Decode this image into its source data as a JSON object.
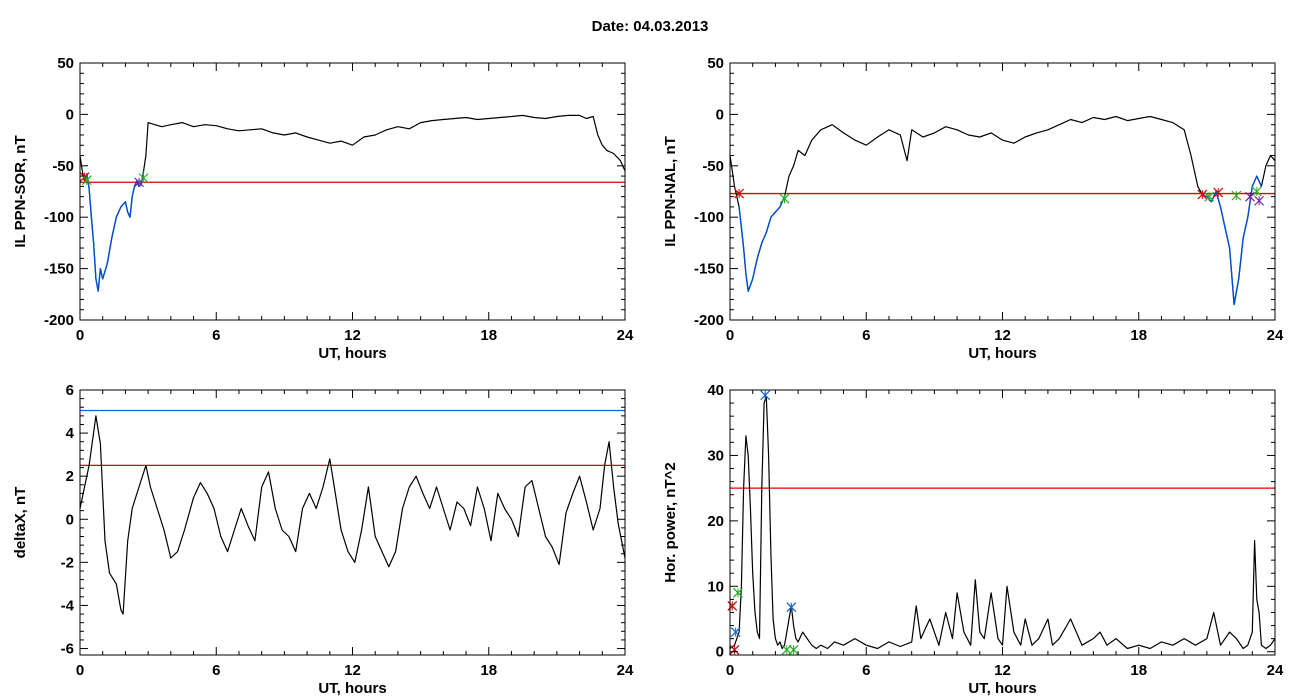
{
  "figure": {
    "title": "Date:  04.03.2013"
  },
  "chart_data": [
    {
      "type": "line",
      "id": "il-sor",
      "xlabel": "UT, hours",
      "ylabel": "IL PPN-SOR, nT",
      "xlim": [
        0,
        24
      ],
      "ylim": [
        -200,
        50
      ],
      "xticks": [
        0,
        6,
        12,
        18,
        24
      ],
      "yticks": [
        -200,
        -150,
        -100,
        -50,
        0,
        50
      ],
      "series": [
        {
          "color": "#000000",
          "x": [
            0,
            0.1,
            0.2,
            0.3,
            0.4,
            0.5,
            0.6,
            0.7,
            0.8,
            0.9,
            1,
            1.2,
            1.4,
            1.6,
            1.8,
            2,
            2.1,
            2.2,
            2.3,
            2.4,
            2.5,
            2.6,
            2.7,
            2.8,
            2.9,
            3,
            3.3,
            3.6,
            4,
            4.5,
            5,
            5.5,
            6,
            6.5,
            7,
            7.5,
            8,
            8.5,
            9,
            9.5,
            10,
            10.5,
            11,
            11.5,
            12,
            12.5,
            13,
            13.5,
            14,
            14.5,
            15,
            15.5,
            16,
            16.5,
            17,
            17.5,
            18,
            18.5,
            19,
            19.5,
            20,
            20.5,
            21,
            21.5,
            22,
            22.3,
            22.6,
            22.8,
            23,
            23.2,
            23.5,
            23.8,
            24
          ],
          "y": [
            -40,
            -55,
            -65,
            -58,
            -72,
            -100,
            -125,
            -160,
            -172,
            -150,
            -160,
            -145,
            -120,
            -100,
            -90,
            -85,
            -95,
            -100,
            -80,
            -70,
            -65,
            -70,
            -68,
            -55,
            -40,
            -8,
            -10,
            -12,
            -10,
            -8,
            -12,
            -10,
            -11,
            -14,
            -16,
            -15,
            -14,
            -18,
            -20,
            -18,
            -22,
            -25,
            -28,
            -26,
            -30,
            -22,
            -20,
            -15,
            -12,
            -14,
            -8,
            -6,
            -5,
            -4,
            -3,
            -5,
            -4,
            -3,
            -2,
            -1,
            -3,
            -4,
            -2,
            -1,
            -1,
            -4,
            -2,
            -20,
            -30,
            -35,
            -38,
            -45,
            -55
          ]
        }
      ],
      "threshold_lines": [
        {
          "y": -66,
          "color": "#e00000"
        }
      ],
      "markers": [
        {
          "x": 0.2,
          "y": -61,
          "color": "#d00000"
        },
        {
          "x": 0.3,
          "y": -64,
          "color": "#20b020"
        },
        {
          "x": 2.6,
          "y": -66,
          "color": "#7020a0"
        },
        {
          "x": 2.8,
          "y": -62,
          "color": "#20b020"
        }
      ],
      "highlight_range": [
        0.3,
        2.8
      ],
      "highlight_color": "#0050d0"
    },
    {
      "type": "line",
      "id": "il-nal",
      "xlabel": "UT, hours",
      "ylabel": "IL PPN-NAL, nT",
      "xlim": [
        0,
        24
      ],
      "ylim": [
        -200,
        50
      ],
      "xticks": [
        0,
        6,
        12,
        18,
        24
      ],
      "yticks": [
        -200,
        -150,
        -100,
        -50,
        0,
        50
      ],
      "series": [
        {
          "color": "#000000",
          "x": [
            0,
            0.1,
            0.2,
            0.3,
            0.4,
            0.5,
            0.6,
            0.7,
            0.8,
            1,
            1.2,
            1.4,
            1.6,
            1.8,
            2,
            2.2,
            2.4,
            2.6,
            2.8,
            3,
            3.3,
            3.6,
            4,
            4.5,
            5,
            5.5,
            6,
            6.5,
            7,
            7.5,
            7.8,
            8,
            8.5,
            9,
            9.5,
            10,
            10.5,
            11,
            11.5,
            12,
            12.5,
            13,
            13.5,
            14,
            14.5,
            15,
            15.5,
            16,
            16.5,
            17,
            17.5,
            18,
            18.5,
            19,
            19.5,
            20,
            20.3,
            20.6,
            20.8,
            21,
            21.2,
            21.4,
            21.6,
            21.8,
            22,
            22.2,
            22.4,
            22.6,
            22.8,
            23,
            23.2,
            23.4,
            23.6,
            23.8,
            24
          ],
          "y": [
            -40,
            -55,
            -70,
            -80,
            -90,
            -110,
            -130,
            -155,
            -172,
            -160,
            -140,
            -125,
            -115,
            -100,
            -95,
            -90,
            -80,
            -60,
            -50,
            -35,
            -40,
            -25,
            -15,
            -10,
            -18,
            -25,
            -30,
            -22,
            -15,
            -20,
            -45,
            -15,
            -22,
            -18,
            -12,
            -15,
            -20,
            -22,
            -18,
            -25,
            -28,
            -22,
            -18,
            -15,
            -10,
            -5,
            -8,
            -3,
            -5,
            -2,
            -6,
            -4,
            -2,
            -5,
            -8,
            -15,
            -40,
            -70,
            -78,
            -80,
            -85,
            -75,
            -90,
            -110,
            -130,
            -185,
            -160,
            -120,
            -100,
            -70,
            -60,
            -70,
            -50,
            -40,
            -45
          ]
        }
      ],
      "threshold_lines": [
        {
          "y": -77,
          "color": "#e00000"
        }
      ],
      "markers": [
        {
          "x": 0.4,
          "y": -77,
          "color": "#d00000"
        },
        {
          "x": 2.4,
          "y": -82,
          "color": "#20b020"
        },
        {
          "x": 20.8,
          "y": -78,
          "color": "#d00000"
        },
        {
          "x": 21.1,
          "y": -80,
          "color": "#20b020"
        },
        {
          "x": 21.5,
          "y": -76,
          "color": "#d00000"
        },
        {
          "x": 22.3,
          "y": -79,
          "color": "#20b020"
        },
        {
          "x": 22.9,
          "y": -80,
          "color": "#7020a0"
        },
        {
          "x": 23.2,
          "y": -75,
          "color": "#20b020"
        },
        {
          "x": 23.3,
          "y": -84,
          "color": "#7020a0"
        }
      ],
      "highlight_range": [
        0.4,
        2.4
      ],
      "highlight_range2": [
        20.8,
        23.4
      ],
      "highlight_color": "#0050d0"
    },
    {
      "type": "line",
      "id": "deltax",
      "xlabel": "UT, hours",
      "ylabel": "deltaX, nT",
      "xlim": [
        0,
        24
      ],
      "ylim": [
        -6.3,
        6
      ],
      "xticks": [
        0,
        6,
        12,
        18,
        24
      ],
      "yticks": [
        -6,
        -4,
        -2,
        0,
        2,
        4,
        6
      ],
      "series": [
        {
          "color": "#000000",
          "x": [
            0,
            0.2,
            0.4,
            0.7,
            0.9,
            1.1,
            1.3,
            1.6,
            1.8,
            1.9,
            2.1,
            2.3,
            2.6,
            2.9,
            3.1,
            3.4,
            3.7,
            4,
            4.3,
            4.6,
            5,
            5.3,
            5.6,
            5.9,
            6.2,
            6.5,
            6.8,
            7.1,
            7.4,
            7.7,
            8,
            8.3,
            8.6,
            8.9,
            9.2,
            9.5,
            9.8,
            10.1,
            10.4,
            10.7,
            11,
            11.2,
            11.5,
            11.8,
            12.1,
            12.4,
            12.7,
            13,
            13.3,
            13.6,
            13.9,
            14.2,
            14.5,
            14.8,
            15.1,
            15.4,
            15.7,
            16,
            16.3,
            16.6,
            16.9,
            17.2,
            17.5,
            17.8,
            18.1,
            18.4,
            18.7,
            19,
            19.3,
            19.6,
            19.9,
            20.2,
            20.5,
            20.8,
            21.1,
            21.4,
            21.7,
            22,
            22.3,
            22.6,
            22.9,
            23.1,
            23.3,
            23.5,
            23.7,
            24
          ],
          "y": [
            0.5,
            1.5,
            2.5,
            4.8,
            3.5,
            -1,
            -2.5,
            -3,
            -4.2,
            -4.4,
            -1,
            0.5,
            1.5,
            2.5,
            1.5,
            0.5,
            -0.5,
            -1.8,
            -1.5,
            -0.5,
            1,
            1.7,
            1.2,
            0.5,
            -0.8,
            -1.5,
            -0.5,
            0.5,
            -0.3,
            -1,
            1.5,
            2.2,
            0.5,
            -0.5,
            -0.8,
            -1.5,
            0.5,
            1.2,
            0.5,
            1.5,
            2.8,
            1.5,
            -0.5,
            -1.5,
            -2.0,
            -0.5,
            1.5,
            -0.8,
            -1.5,
            -2.2,
            -1.5,
            0.5,
            1.5,
            2.0,
            1.2,
            0.5,
            1.5,
            0.5,
            -0.5,
            0.8,
            0.5,
            -0.3,
            1.5,
            0.5,
            -1,
            1.2,
            0.5,
            0,
            -0.8,
            1.5,
            1.8,
            0.5,
            -0.8,
            -1.3,
            -2.1,
            0.3,
            1.2,
            2.0,
            0.8,
            -0.5,
            0.5,
            2.5,
            3.6,
            1.5,
            -0.2,
            -1.8
          ]
        }
      ],
      "threshold_lines": [
        {
          "y": 5.05,
          "color": "#1060d0"
        },
        {
          "y": 2.5,
          "color": "#e00000"
        }
      ],
      "markers": []
    },
    {
      "type": "line",
      "id": "hor-power",
      "xlabel": "UT, hours",
      "ylabel": "Hor. power, nT^2",
      "xlim": [
        0,
        24
      ],
      "ylim": [
        -0.5,
        40
      ],
      "xticks": [
        0,
        6,
        12,
        18,
        24
      ],
      "yticks": [
        0,
        10,
        20,
        30,
        40
      ],
      "series": [
        {
          "color": "#000000",
          "x": [
            0,
            0.2,
            0.4,
            0.5,
            0.6,
            0.7,
            0.8,
            0.9,
            1,
            1.1,
            1.2,
            1.3,
            1.4,
            1.5,
            1.6,
            1.7,
            1.8,
            1.9,
            2,
            2.1,
            2.2,
            2.3,
            2.4,
            2.5,
            2.6,
            2.7,
            2.8,
            2.9,
            3,
            3.2,
            3.4,
            3.6,
            3.8,
            4,
            4.3,
            4.6,
            5,
            5.5,
            6,
            6.5,
            7,
            7.5,
            8,
            8.2,
            8.4,
            8.8,
            9.2,
            9.5,
            9.8,
            10,
            10.3,
            10.6,
            10.8,
            11,
            11.2,
            11.5,
            11.8,
            12,
            12.2,
            12.5,
            12.8,
            13,
            13.3,
            13.6,
            14,
            14.2,
            14.5,
            15,
            15.5,
            16,
            16.3,
            16.6,
            17,
            17.5,
            18,
            18.5,
            19,
            19.5,
            20,
            20.5,
            21,
            21.3,
            21.6,
            22,
            22.3,
            22.6,
            22.8,
            23,
            23.1,
            23.2,
            23.3,
            23.4,
            23.6,
            23.8,
            24
          ],
          "y": [
            0.5,
            1,
            3,
            10,
            25,
            33,
            30,
            22,
            12,
            6,
            3,
            2,
            25,
            38,
            39,
            30,
            15,
            5,
            2,
            1,
            1.5,
            0.5,
            1,
            3,
            5,
            7,
            4,
            2,
            1.5,
            3,
            2,
            1,
            0.5,
            1,
            0.5,
            1.5,
            1,
            2,
            1,
            0.5,
            1.5,
            0.8,
            1.5,
            7,
            2,
            5,
            1,
            6,
            2,
            9,
            3,
            1,
            11,
            3,
            2,
            9,
            2,
            1,
            10,
            3,
            1,
            5,
            1,
            2,
            5,
            1,
            2,
            5,
            1,
            2,
            3,
            1,
            2,
            0.5,
            1,
            0.5,
            1.5,
            1,
            2,
            1,
            2,
            6,
            1,
            3,
            2,
            0.5,
            1,
            3,
            17,
            8,
            6,
            1,
            0.5,
            1,
            2
          ]
        }
      ],
      "threshold_lines": [
        {
          "y": 25,
          "color": "#e00000"
        }
      ],
      "markers": [
        {
          "x": 0.1,
          "y": 7,
          "color": "#d00000"
        },
        {
          "x": 0.25,
          "y": 3,
          "color": "#1060d0"
        },
        {
          "x": 0.35,
          "y": 9,
          "color": "#20b020"
        },
        {
          "x": 0.2,
          "y": 0.3,
          "color": "#d00000"
        },
        {
          "x": 1.55,
          "y": 39.2,
          "color": "#1060d0"
        },
        {
          "x": 2.7,
          "y": 6.8,
          "color": "#1060d0"
        },
        {
          "x": 2.5,
          "y": 0.3,
          "color": "#20b020"
        },
        {
          "x": 2.8,
          "y": 0.3,
          "color": "#20b020"
        }
      ]
    }
  ]
}
